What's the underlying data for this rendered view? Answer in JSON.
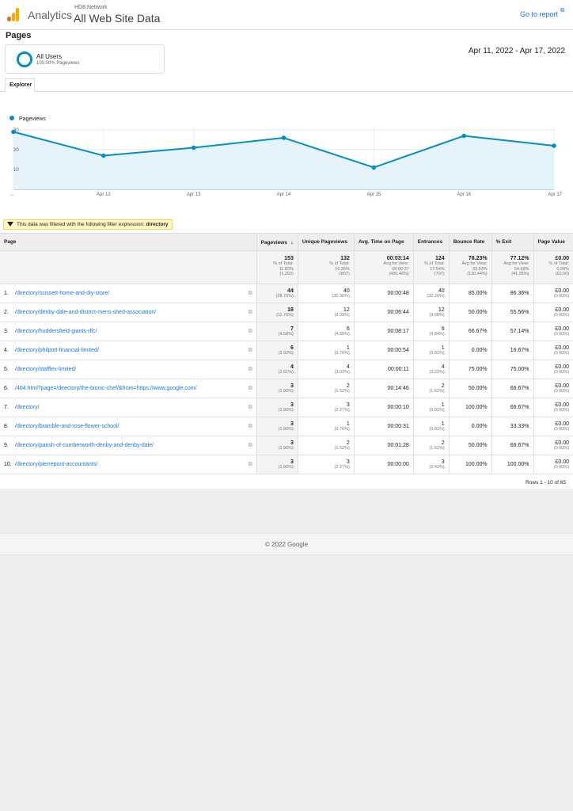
{
  "header": {
    "brand": "Analytics",
    "account": "HD8 Network",
    "property": "All Web Site Data",
    "goto_report": "Go to report",
    "goto_icon": "external-link-icon"
  },
  "page_title": "Pages",
  "segment": {
    "name": "All Users",
    "sub": "100.00% Pageviews"
  },
  "date_range": "Apr 11, 2022 - Apr 17, 2022",
  "tabs": [
    {
      "label": "Explorer"
    }
  ],
  "chart": {
    "legend": "Pageviews",
    "color": "#058dc7",
    "yticks": [
      "30",
      "20",
      "10"
    ],
    "xticks": [
      "...",
      "Apr 12",
      "Apr 13",
      "Apr 14",
      "Apr 15",
      "Apr 16",
      "Apr 17"
    ]
  },
  "chart_data": {
    "type": "area",
    "x": [
      "Apr 11",
      "Apr 12",
      "Apr 13",
      "Apr 14",
      "Apr 15",
      "Apr 16",
      "Apr 17"
    ],
    "series": [
      {
        "name": "Pageviews",
        "values": [
          29,
          17,
          21,
          26,
          11,
          27,
          22
        ]
      }
    ],
    "ylim": [
      0,
      30
    ],
    "grid": true,
    "legend": "top-left"
  },
  "filter": {
    "text": "This data was filtered with the following filter expression:",
    "expression": "directory"
  },
  "table": {
    "columns": [
      "Page",
      "Pageviews",
      "Unique Pageviews",
      "Avg. Time on Page",
      "Entrances",
      "Bounce Rate",
      "% Exit",
      "Page Value"
    ],
    "sort_icon": "arrow-down-icon",
    "totals": [
      {
        "value": "153",
        "l1": "% of Total:",
        "l2": "11.83%",
        "l3": "(1,293)"
      },
      {
        "value": "132",
        "l1": "% of Total:",
        "l2": "16.36%",
        "l3": "(807)"
      },
      {
        "value": "00:03:14",
        "l1": "Avg for View:",
        "l2": "00:00:37",
        "l3": "(426.46%)"
      },
      {
        "value": "124",
        "l1": "% of Total:",
        "l2": "17.54%",
        "l3": "(707)"
      },
      {
        "value": "78.23%",
        "l1": "Avg for View:",
        "l2": "33.93%",
        "l3": "(130.44%)"
      },
      {
        "value": "77.12%",
        "l1": "Avg for View:",
        "l2": "54.68%",
        "l3": "(41.05%)"
      },
      {
        "value": "£0.00",
        "l1": "% of Total:",
        "l2": "0.00%",
        "l3": "(£0.00)"
      }
    ],
    "rows": [
      {
        "num": "1.",
        "page": "/directory/scissett-home-and-diy-store/",
        "pv": "44",
        "pv_pct": "(28.76%)",
        "upv": "40",
        "upv_pct": "(30.30%)",
        "avg": "00:00:48",
        "ent": "40",
        "ent_pct": "(32.26%)",
        "bounce": "85.00%",
        "exit": "86.36%",
        "value": "£0.00",
        "value_pct": "(0.00%)"
      },
      {
        "num": "2.",
        "page": "/directory/denby-dale-and-district-mens-shed-association/",
        "pv": "18",
        "pv_pct": "(11.76%)",
        "upv": "12",
        "upv_pct": "(9.09%)",
        "avg": "00:06:44",
        "ent": "12",
        "ent_pct": "(9.68%)",
        "bounce": "50.00%",
        "exit": "55.56%",
        "value": "£0.00",
        "value_pct": "(0.00%)"
      },
      {
        "num": "3.",
        "page": "/directory/huddersfield-giants-rlfc/",
        "pv": "7",
        "pv_pct": "(4.58%)",
        "upv": "6",
        "upv_pct": "(4.55%)",
        "avg": "00:08:17",
        "ent": "6",
        "ent_pct": "(4.84%)",
        "bounce": "66.67%",
        "exit": "57.14%",
        "value": "£0.00",
        "value_pct": "(0.00%)"
      },
      {
        "num": "4.",
        "page": "/directory/philpott-financial-limited/",
        "pv": "6",
        "pv_pct": "(3.92%)",
        "upv": "1",
        "upv_pct": "(0.76%)",
        "avg": "00:00:54",
        "ent": "1",
        "ent_pct": "(0.81%)",
        "bounce": "0.00%",
        "exit": "16.67%",
        "value": "£0.00",
        "value_pct": "(0.00%)"
      },
      {
        "num": "5.",
        "page": "/directory/stafflex-limited/",
        "pv": "4",
        "pv_pct": "(2.61%)",
        "upv": "4",
        "upv_pct": "(3.03%)",
        "avg": "00:00:11",
        "ent": "4",
        "ent_pct": "(3.23%)",
        "bounce": "75.00%",
        "exit": "75.00%",
        "value": "£0.00",
        "value_pct": "(0.00%)"
      },
      {
        "num": "6.",
        "page": "/404.html?page=/directory/the-bionic-chef/&from=https://www.google.com/",
        "pv": "3",
        "pv_pct": "(1.96%)",
        "upv": "2",
        "upv_pct": "(1.52%)",
        "avg": "00:14:46",
        "ent": "2",
        "ent_pct": "(1.61%)",
        "bounce": "50.00%",
        "exit": "66.67%",
        "value": "£0.00",
        "value_pct": "(0.00%)"
      },
      {
        "num": "7.",
        "page": "/directory/",
        "pv": "3",
        "pv_pct": "(1.96%)",
        "upv": "3",
        "upv_pct": "(2.27%)",
        "avg": "00:00:10",
        "ent": "1",
        "ent_pct": "(0.81%)",
        "bounce": "100.00%",
        "exit": "66.67%",
        "value": "£0.00",
        "value_pct": "(0.00%)"
      },
      {
        "num": "8.",
        "page": "/directory/bramble-and-rose-flower-school/",
        "pv": "3",
        "pv_pct": "(1.96%)",
        "upv": "1",
        "upv_pct": "(0.76%)",
        "avg": "00:00:31",
        "ent": "1",
        "ent_pct": "(0.81%)",
        "bounce": "0.00%",
        "exit": "33.33%",
        "value": "£0.00",
        "value_pct": "(0.00%)"
      },
      {
        "num": "9.",
        "page": "/directory/parish-of-cumberworth-denby-and-denby-dale/",
        "pv": "3",
        "pv_pct": "(1.96%)",
        "upv": "2",
        "upv_pct": "(1.52%)",
        "avg": "00:01:28",
        "ent": "2",
        "ent_pct": "(1.61%)",
        "bounce": "50.00%",
        "exit": "66.67%",
        "value": "£0.00",
        "value_pct": "(0.00%)"
      },
      {
        "num": "10.",
        "page": "/directory/pierrepont-accountants/",
        "pv": "3",
        "pv_pct": "(1.96%)",
        "upv": "3",
        "upv_pct": "(2.27%)",
        "avg": "00:00:00",
        "ent": "3",
        "ent_pct": "(2.42%)",
        "bounce": "100.00%",
        "exit": "100.00%",
        "value": "£0.00",
        "value_pct": "(0.00%)"
      }
    ],
    "row_icon": "open-in-new-window-icon",
    "rows_info": "Rows 1 - 10 of 65"
  },
  "footer": "© 2022 Google"
}
